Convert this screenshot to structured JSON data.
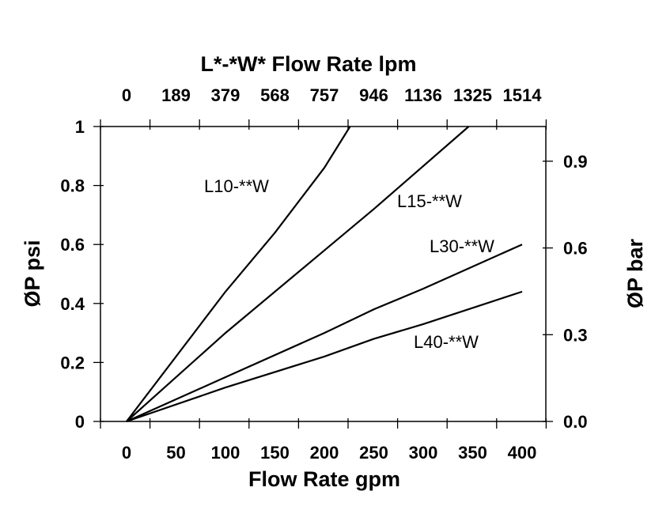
{
  "chart_data": {
    "type": "line",
    "title": "L*-*W* Flow Rate lpm",
    "xlabel": "Flow Rate gpm",
    "ylabel": "ØP psi",
    "y2label": "ØP bar",
    "xlim": [
      0,
      400
    ],
    "ylim": [
      0,
      1
    ],
    "x_ticks": [
      "0",
      "50",
      "100",
      "150",
      "200",
      "250",
      "300",
      "350",
      "400"
    ],
    "x_tick_values": [
      0,
      50,
      100,
      150,
      200,
      250,
      300,
      350,
      400
    ],
    "x2_ticks": [
      "0",
      "189",
      "379",
      "568",
      "757",
      "946",
      "1136",
      "1325",
      "1514"
    ],
    "y_ticks": [
      "0",
      "0.2",
      "0.4",
      "0.6",
      "0.8",
      "1"
    ],
    "y_tick_values": [
      0,
      0.2,
      0.4,
      0.6,
      0.8,
      1
    ],
    "y2_ticks": [
      "0.0",
      "0.3",
      "0.6",
      "0.9"
    ],
    "y2_tick_values": [
      0,
      0.3,
      0.6,
      0.9
    ],
    "grid": false,
    "series": [
      {
        "name": "L10-**W",
        "points": [
          [
            0,
            0
          ],
          [
            100,
            0.44
          ],
          [
            150,
            0.64
          ],
          [
            200,
            0.86
          ],
          [
            226,
            1.0
          ]
        ]
      },
      {
        "name": "L15-**W",
        "points": [
          [
            0,
            0
          ],
          [
            100,
            0.3
          ],
          [
            200,
            0.58
          ],
          [
            250,
            0.72
          ],
          [
            346,
            1.0
          ]
        ]
      },
      {
        "name": "L30-**W",
        "points": [
          [
            0,
            0
          ],
          [
            100,
            0.15
          ],
          [
            200,
            0.3
          ],
          [
            250,
            0.38
          ],
          [
            300,
            0.45
          ],
          [
            400,
            0.6
          ]
        ]
      },
      {
        "name": "L40-**W",
        "points": [
          [
            0,
            0
          ],
          [
            100,
            0.115
          ],
          [
            200,
            0.22
          ],
          [
            250,
            0.28
          ],
          [
            300,
            0.33
          ],
          [
            400,
            0.44
          ]
        ]
      }
    ]
  }
}
